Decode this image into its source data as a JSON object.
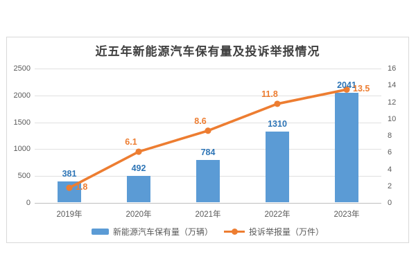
{
  "title": "近五年新能源汽车保有量及投诉举报情况",
  "colors": {
    "bar": "#5b9bd5",
    "bar_label": "#2e75b6",
    "line": "#ed7d31",
    "axis_text": "#595959",
    "gridline": "#e0e0e0",
    "border": "#d9d9d9"
  },
  "chart_data": {
    "type": "bar+line",
    "title": "近五年新能源汽车保有量及投诉举报情况",
    "categories": [
      "2019年",
      "2020年",
      "2021年",
      "2022年",
      "2023年"
    ],
    "series": [
      {
        "name": "新能源汽车保有量（万辆）",
        "type": "bar",
        "axis": "left",
        "color": "#5b9bd5",
        "label_color": "#2e75b6",
        "values": [
          381,
          492,
          784,
          1310,
          2041
        ],
        "labels": [
          "381",
          "492",
          "784",
          "1310",
          "2041"
        ]
      },
      {
        "name": "投诉举报量（万件）",
        "type": "line",
        "axis": "right",
        "color": "#ed7d31",
        "values": [
          1.8,
          6.1,
          8.6,
          11.8,
          13.5
        ],
        "labels": [
          "1.8",
          "6.1",
          "8.6",
          "11.8",
          "13.5"
        ],
        "label_placement": [
          "right",
          "above",
          "above",
          "above",
          "right"
        ]
      }
    ],
    "left_axis": {
      "min": 0,
      "max": 2500,
      "step": 500,
      "ticks": [
        "0",
        "500",
        "1000",
        "1500",
        "2000",
        "2500"
      ]
    },
    "right_axis": {
      "min": 0,
      "max": 16,
      "step": 2,
      "ticks": [
        "0",
        "2",
        "4",
        "6",
        "8",
        "10",
        "12",
        "14",
        "16"
      ]
    },
    "grid": true,
    "legend_position": "bottom"
  }
}
